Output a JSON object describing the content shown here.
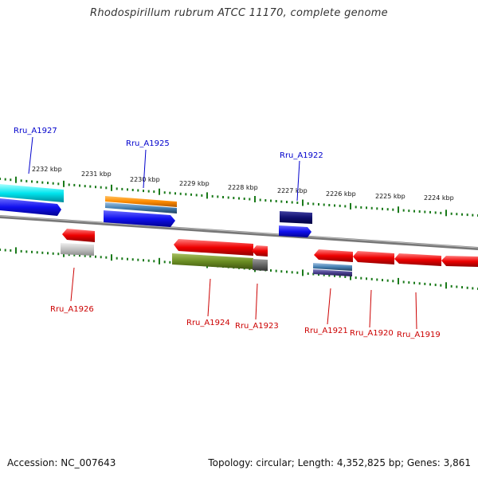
{
  "title": "Rhodospirillum rubrum ATCC 11170, complete genome",
  "footer": {
    "accession": "Accession: NC_007643",
    "summary": "Topology: circular; Length: 4,352,825 bp; Genes: 3,861"
  },
  "kbp_ticks": [
    "2232 kbp",
    "2231 kbp",
    "2230 kbp",
    "2229 kbp",
    "2228 kbp",
    "2227 kbp",
    "2226 kbp",
    "2225 kbp",
    "2224 kbp"
  ],
  "genes_top": [
    "Rru_A1927",
    "Rru_A1925",
    "Rru_A1922"
  ],
  "genes_bottom": [
    "Rru_A1926",
    "Rru_A1924",
    "Rru_A1923",
    "Rru_A1921",
    "Rru_A1920",
    "Rru_A1919"
  ],
  "colors": {
    "forward_label": "#0000cc",
    "reverse_label": "#cc0000",
    "backbone": "#888888",
    "tick": "#1a7a1a"
  }
}
